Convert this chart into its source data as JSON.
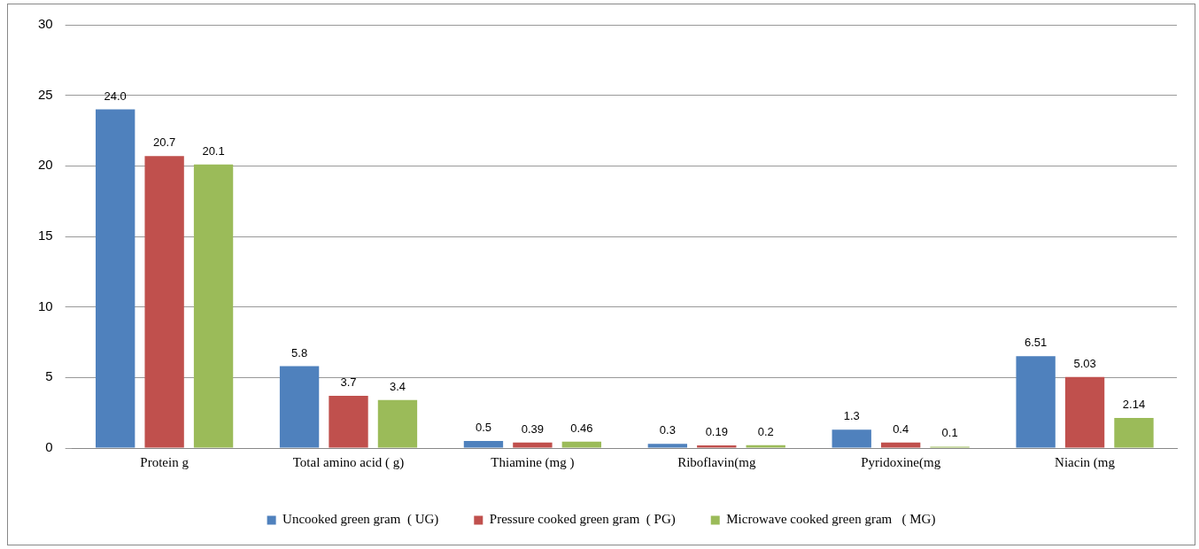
{
  "chart_data": {
    "type": "bar",
    "categories": [
      "Protein g",
      "Total amino acid ( g)",
      "Thiamine (mg )",
      "Riboflavin(mg",
      "Pyridoxine(mg",
      "Niacin (mg"
    ],
    "series": [
      {
        "name": "Uncooked green gram  ( UG)",
        "color": "#4f81bd",
        "values": [
          24.0,
          5.8,
          0.5,
          0.3,
          1.3,
          6.51
        ],
        "value_labels": [
          "24.0",
          "5.8",
          "0.5",
          "0.3",
          "1.3",
          "6.51"
        ]
      },
      {
        "name": "Pressure cooked green gram  ( PG)",
        "color": "#c0504d",
        "values": [
          20.7,
          3.7,
          0.39,
          0.19,
          0.4,
          5.03
        ],
        "value_labels": [
          "20.7",
          "3.7",
          "0.39",
          "0.19",
          "0.4",
          "5.03"
        ]
      },
      {
        "name": "Microwave cooked green gram   ( MG)",
        "color": "#9bbb59",
        "values": [
          20.1,
          3.4,
          0.46,
          0.2,
          0.1,
          2.14
        ],
        "value_labels": [
          "20.1",
          "3.4",
          "0.46",
          "0.2",
          "0.1",
          "2.14"
        ]
      }
    ],
    "ylim": [
      0,
      30
    ],
    "yticks": [
      0,
      5,
      10,
      15,
      20,
      25,
      30
    ],
    "grid": "y",
    "legend": "bottom"
  }
}
